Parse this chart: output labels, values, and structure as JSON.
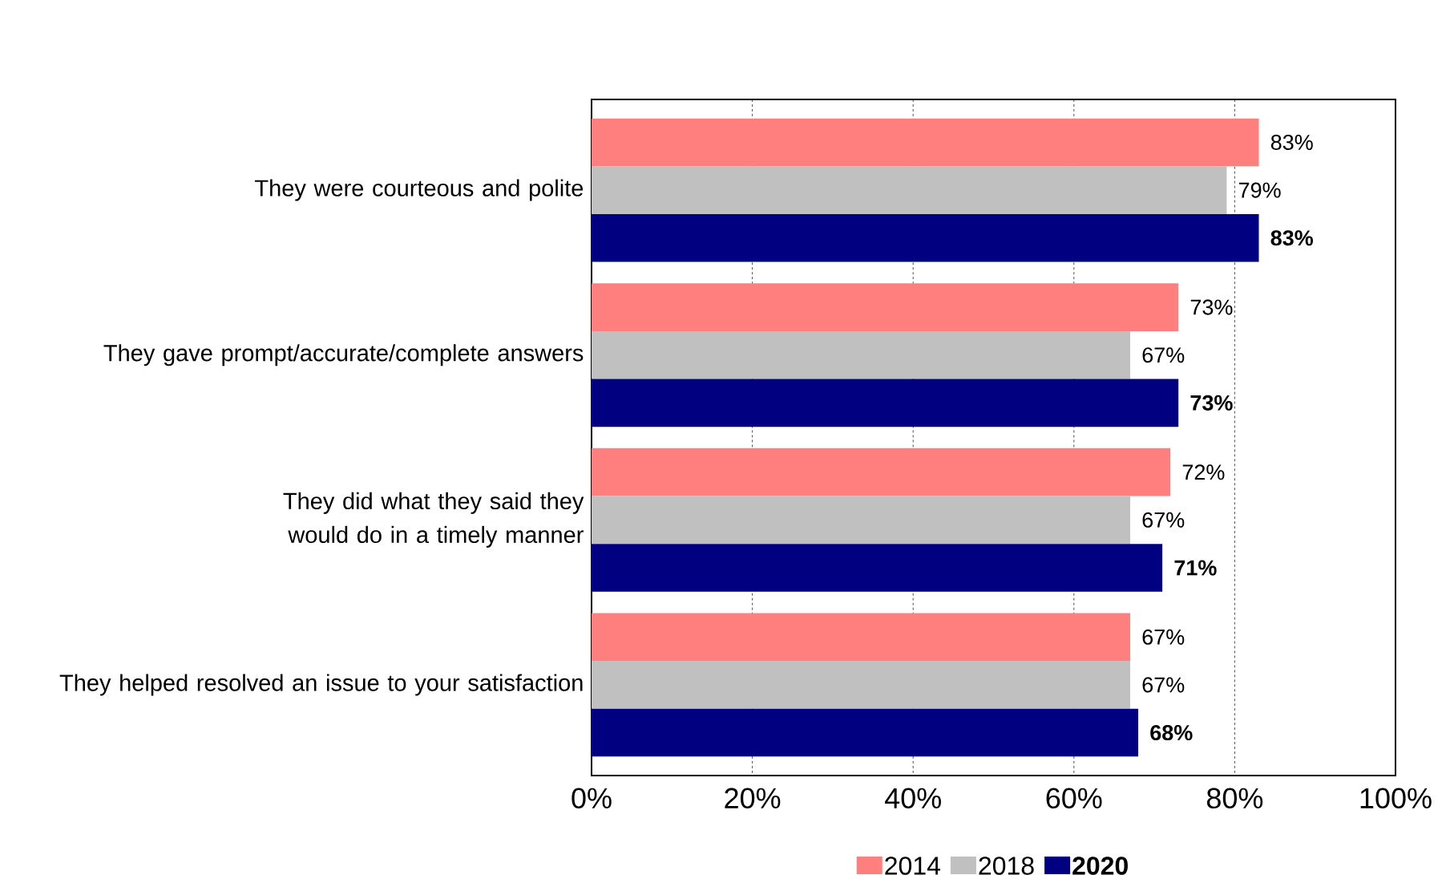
{
  "chart_data": {
    "type": "bar",
    "orientation": "horizontal",
    "categories": [
      "They were courteous and polite",
      "They gave prompt/accurate/complete answers",
      "They did what they said they would do in a timely manner",
      "They helped resolved an issue to your satisfaction"
    ],
    "series": [
      {
        "name": "2014",
        "color": "#ff7f7f",
        "values": [
          83,
          73,
          72,
          67
        ],
        "value_labels": [
          "83%",
          "73%",
          "72%",
          "67%"
        ]
      },
      {
        "name": "2018",
        "color": "#c0c0c0",
        "values": [
          79,
          67,
          67,
          67
        ],
        "value_labels": [
          "79%",
          "67%",
          "67%",
          "67%"
        ]
      },
      {
        "name": "2020",
        "color": "#000080",
        "values": [
          83,
          73,
          71,
          68
        ],
        "value_labels": [
          "83%",
          "73%",
          "71%",
          "68%"
        ]
      }
    ],
    "xlim": [
      0,
      100
    ],
    "xticks": [
      {
        "value": 0,
        "label": "0%"
      },
      {
        "value": 20,
        "label": "20%"
      },
      {
        "value": 40,
        "label": "40%"
      },
      {
        "value": 60,
        "label": "60%"
      },
      {
        "value": 80,
        "label": "80%"
      },
      {
        "value": 100,
        "label": "100%"
      }
    ],
    "grid": "x",
    "legend": "bottom"
  }
}
